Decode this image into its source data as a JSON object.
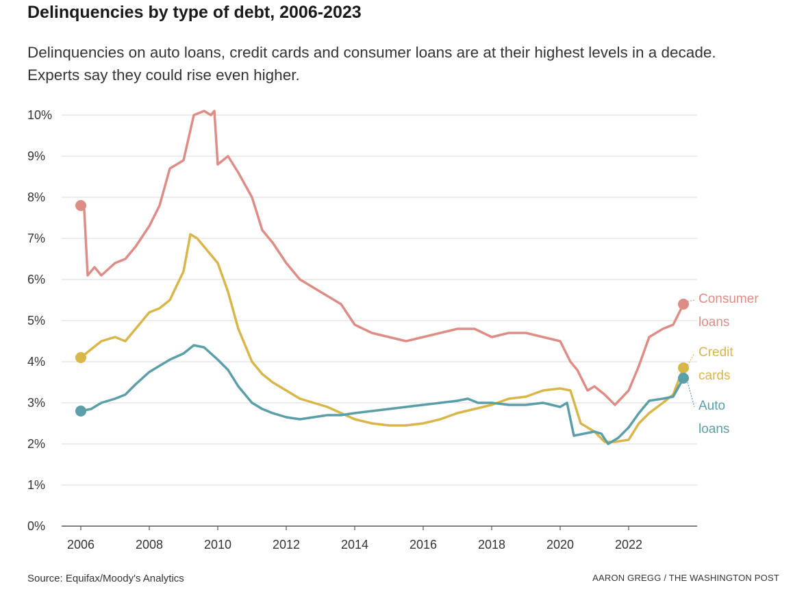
{
  "chart_data": {
    "type": "line",
    "title": "Delinquencies by type of debt, 2006-2023",
    "subtitle": "Delinquencies on auto loans, credit cards and consumer loans are at their highest levels in a decade. Experts say they could rise even higher.",
    "xlabel": "",
    "ylabel": "",
    "xlim": [
      2006,
      2024
    ],
    "ylim": [
      0,
      10
    ],
    "x_ticks": [
      2006,
      2008,
      2010,
      2012,
      2014,
      2016,
      2018,
      2020,
      2022
    ],
    "x_tick_labels": [
      "2006",
      "2008",
      "2010",
      "2012",
      "2014",
      "2016",
      "2018",
      "2020",
      "2022"
    ],
    "y_ticks": [
      0,
      1,
      2,
      3,
      4,
      5,
      6,
      7,
      8,
      9,
      10
    ],
    "y_tick_labels": [
      "0%",
      "1%",
      "2%",
      "3%",
      "4%",
      "5%",
      "6%",
      "7%",
      "8%",
      "9%",
      "10%"
    ],
    "grid": "horizontal",
    "legend": "direct labels at right end of lines",
    "series": [
      {
        "name": "Consumer loans",
        "label_lines": [
          "Consumer",
          "loans"
        ],
        "color": "#de8c86",
        "x": [
          2006.0,
          2006.1,
          2006.2,
          2006.4,
          2006.6,
          2007.0,
          2007.3,
          2007.6,
          2008.0,
          2008.3,
          2008.6,
          2009.0,
          2009.3,
          2009.6,
          2009.8,
          2009.9,
          2010.0,
          2010.3,
          2010.6,
          2011.0,
          2011.3,
          2011.6,
          2012.0,
          2012.4,
          2012.8,
          2013.2,
          2013.6,
          2014.0,
          2014.5,
          2015.0,
          2015.5,
          2016.0,
          2016.5,
          2017.0,
          2017.5,
          2018.0,
          2018.5,
          2019.0,
          2019.5,
          2020.0,
          2020.3,
          2020.5,
          2020.8,
          2021.0,
          2021.3,
          2021.6,
          2022.0,
          2022.3,
          2022.6,
          2023.0,
          2023.3,
          2023.6
        ],
        "values": [
          7.8,
          7.7,
          6.1,
          6.3,
          6.1,
          6.4,
          6.5,
          6.8,
          7.3,
          7.8,
          8.7,
          8.9,
          10.0,
          10.1,
          10.0,
          10.1,
          8.8,
          9.0,
          8.6,
          8.0,
          7.2,
          6.9,
          6.4,
          6.0,
          5.8,
          5.6,
          5.4,
          4.9,
          4.7,
          4.6,
          4.5,
          4.6,
          4.7,
          4.8,
          4.8,
          4.6,
          4.7,
          4.7,
          4.6,
          4.5,
          4.0,
          3.8,
          3.3,
          3.4,
          3.2,
          2.95,
          3.3,
          3.9,
          4.6,
          4.8,
          4.9,
          5.4
        ]
      },
      {
        "name": "Credit cards",
        "label_lines": [
          "Credit",
          "cards"
        ],
        "color": "#d8b64a",
        "x": [
          2006.0,
          2006.3,
          2006.6,
          2007.0,
          2007.3,
          2007.6,
          2008.0,
          2008.3,
          2008.6,
          2009.0,
          2009.2,
          2009.4,
          2009.6,
          2010.0,
          2010.3,
          2010.6,
          2011.0,
          2011.3,
          2011.6,
          2012.0,
          2012.4,
          2012.8,
          2013.2,
          2013.6,
          2014.0,
          2014.5,
          2015.0,
          2015.5,
          2016.0,
          2016.5,
          2017.0,
          2017.5,
          2018.0,
          2018.5,
          2019.0,
          2019.5,
          2020.0,
          2020.3,
          2020.6,
          2021.0,
          2021.3,
          2021.6,
          2022.0,
          2022.3,
          2022.6,
          2023.0,
          2023.3,
          2023.6
        ],
        "values": [
          4.1,
          4.3,
          4.5,
          4.6,
          4.5,
          4.8,
          5.2,
          5.3,
          5.5,
          6.2,
          7.1,
          7.0,
          6.8,
          6.4,
          5.7,
          4.8,
          4.0,
          3.7,
          3.5,
          3.3,
          3.1,
          3.0,
          2.9,
          2.75,
          2.6,
          2.5,
          2.45,
          2.45,
          2.5,
          2.6,
          2.75,
          2.85,
          2.95,
          3.1,
          3.15,
          3.3,
          3.35,
          3.3,
          2.5,
          2.3,
          2.05,
          2.05,
          2.1,
          2.5,
          2.75,
          3.0,
          3.2,
          3.85
        ]
      },
      {
        "name": "Auto loans",
        "label_lines": [
          "Auto",
          "loans"
        ],
        "color": "#5a9ea8",
        "x": [
          2006.0,
          2006.3,
          2006.6,
          2007.0,
          2007.3,
          2007.6,
          2008.0,
          2008.3,
          2008.6,
          2009.0,
          2009.3,
          2009.6,
          2010.0,
          2010.3,
          2010.6,
          2011.0,
          2011.3,
          2011.6,
          2012.0,
          2012.4,
          2012.8,
          2013.2,
          2013.6,
          2014.0,
          2014.5,
          2015.0,
          2015.5,
          2016.0,
          2016.5,
          2017.0,
          2017.3,
          2017.6,
          2018.0,
          2018.5,
          2019.0,
          2019.5,
          2020.0,
          2020.2,
          2020.4,
          2020.7,
          2021.0,
          2021.2,
          2021.4,
          2021.7,
          2022.0,
          2022.3,
          2022.6,
          2023.0,
          2023.3,
          2023.6
        ],
        "values": [
          2.8,
          2.85,
          3.0,
          3.1,
          3.2,
          3.45,
          3.75,
          3.9,
          4.05,
          4.2,
          4.4,
          4.35,
          4.05,
          3.8,
          3.4,
          3.0,
          2.85,
          2.75,
          2.65,
          2.6,
          2.65,
          2.7,
          2.7,
          2.75,
          2.8,
          2.85,
          2.9,
          2.95,
          3.0,
          3.05,
          3.1,
          3.0,
          3.0,
          2.95,
          2.95,
          3.0,
          2.9,
          3.0,
          2.2,
          2.25,
          2.3,
          2.25,
          2.0,
          2.15,
          2.4,
          2.75,
          3.05,
          3.1,
          3.15,
          3.6
        ]
      }
    ]
  },
  "footer": {
    "source": "Source: Equifax/Moody's Analytics",
    "credit": "AARON GREGG / THE WASHINGTON POST"
  }
}
